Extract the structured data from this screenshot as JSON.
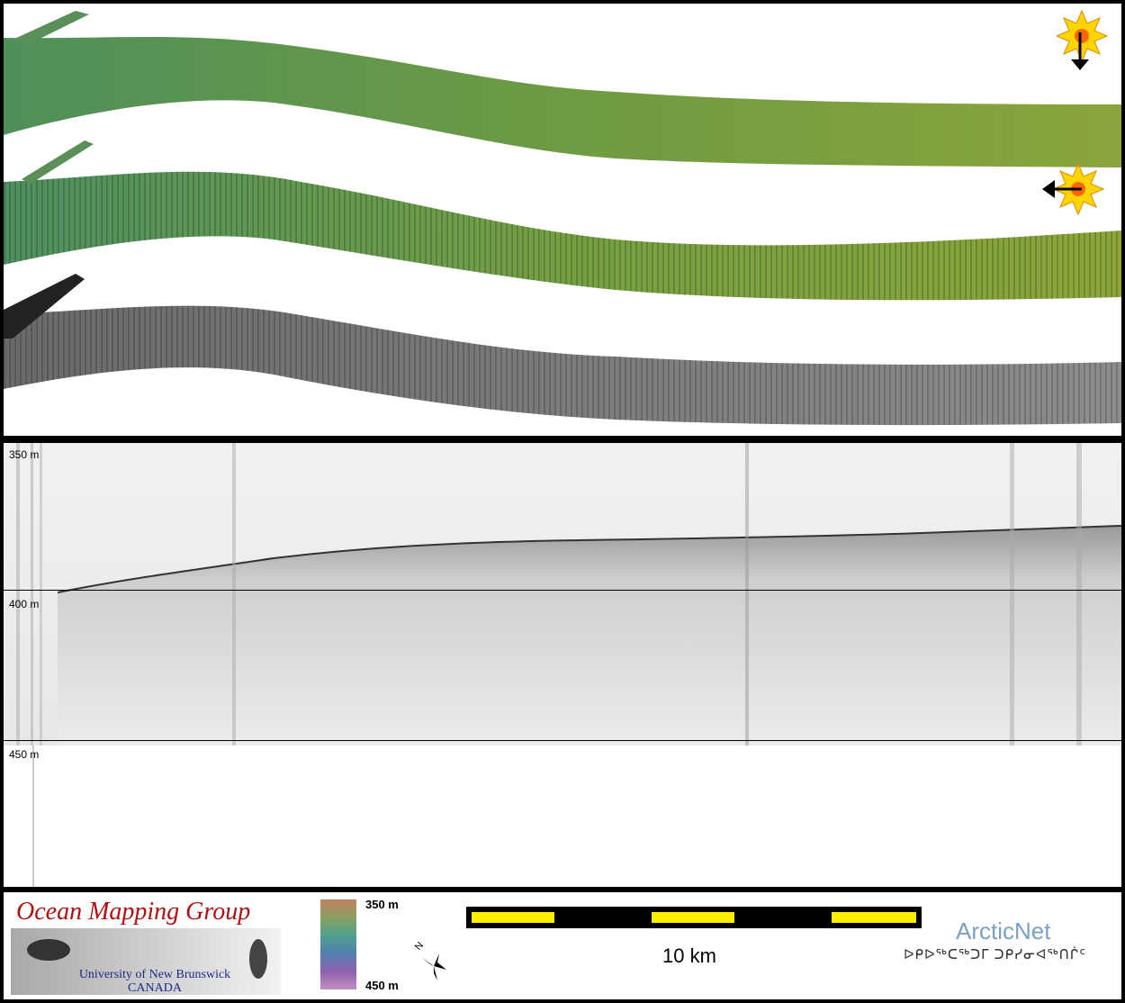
{
  "profile": {
    "depth_labels": [
      "350 m",
      "400 m",
      "450 m"
    ]
  },
  "legend": {
    "org_name": "Ocean Mapping Group",
    "org_sub_line1": "University of New Brunswick",
    "org_sub_line2": "CANADA",
    "colorbar_top": "350 m",
    "colorbar_bottom": "450 m",
    "north_label": "N",
    "scale_label": "10 km",
    "arcticnet_name": "ArcticNet",
    "arcticnet_inuktitut": "ᐅᑭᐅᖅᑕᖅᑐᒥ ᑐᑭᓯᓂᐊᖅᑎᒌᑦ",
    "colors": {
      "org_red": "#b01010",
      "org_blue": "#1b2a8a",
      "scale_yellow": "#ffee00",
      "arcticnet_blue": "#7aa0c4"
    }
  },
  "map": {
    "sun_icons": [
      "sun-illumination-north-icon",
      "sun-illumination-east-icon"
    ]
  }
}
